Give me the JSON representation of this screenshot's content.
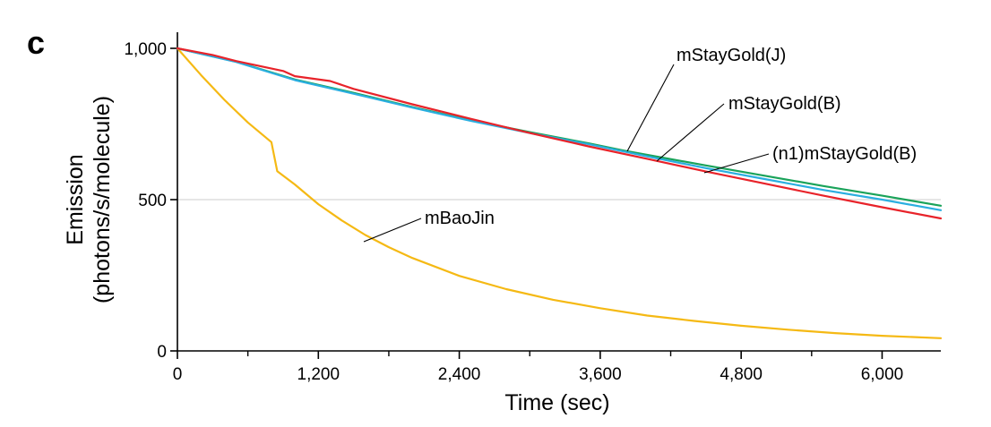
{
  "panel_label": "c",
  "chart_data": {
    "type": "line",
    "title": "",
    "xlabel": "Time (sec)",
    "ylabel_lines": [
      "Emission",
      "(photons/s/molecule)"
    ],
    "xlim": [
      0,
      6500
    ],
    "ylim": [
      0,
      1000
    ],
    "xticks": [
      0,
      1200,
      2400,
      3600,
      4800,
      6000
    ],
    "xtick_labels": [
      "0",
      "1,200",
      "2,400",
      "3,600",
      "4,800",
      "6,000"
    ],
    "x_minor_ticks": [
      600,
      1800,
      3000,
      4200,
      5400
    ],
    "yticks": [
      0,
      500,
      1000
    ],
    "ytick_labels": [
      "0",
      "500",
      "1,000"
    ],
    "gridlines_y": [
      500
    ],
    "legend": "none (direct labels with leader lines)",
    "series": [
      {
        "name": "mStayGold(J)",
        "color": "#1aa35a",
        "points": [
          [
            0,
            1000
          ],
          [
            500,
            956
          ],
          [
            1000,
            897
          ],
          [
            1500,
            853
          ],
          [
            2000,
            806
          ],
          [
            2500,
            762
          ],
          [
            3000,
            723
          ],
          [
            3500,
            686
          ],
          [
            3800,
            662
          ],
          [
            4000,
            648
          ],
          [
            4500,
            613
          ],
          [
            5000,
            579
          ],
          [
            5500,
            545
          ],
          [
            6000,
            513
          ],
          [
            6500,
            480
          ]
        ]
      },
      {
        "name": "mStayGold(B)",
        "color": "#2aaee0",
        "points": [
          [
            0,
            1000
          ],
          [
            500,
            955
          ],
          [
            1000,
            895
          ],
          [
            1500,
            850
          ],
          [
            2000,
            804
          ],
          [
            2500,
            760
          ],
          [
            3000,
            720
          ],
          [
            3500,
            683
          ],
          [
            4000,
            643
          ],
          [
            4500,
            604
          ],
          [
            5000,
            568
          ],
          [
            5500,
            532
          ],
          [
            6000,
            500
          ],
          [
            6500,
            465
          ]
        ]
      },
      {
        "name": "(n1)mStayGold(B)",
        "color": "#e8232a",
        "points": [
          [
            0,
            1000
          ],
          [
            300,
            978
          ],
          [
            500,
            958
          ],
          [
            900,
            925
          ],
          [
            1000,
            908
          ],
          [
            1300,
            892
          ],
          [
            1500,
            866
          ],
          [
            2000,
            815
          ],
          [
            2500,
            767
          ],
          [
            3000,
            720
          ],
          [
            3500,
            676
          ],
          [
            4000,
            635
          ],
          [
            4500,
            593
          ],
          [
            5000,
            553
          ],
          [
            5500,
            513
          ],
          [
            6000,
            475
          ],
          [
            6500,
            438
          ]
        ]
      },
      {
        "name": "mBaoJin",
        "color": "#f5b914",
        "points": [
          [
            0,
            1000
          ],
          [
            200,
            912
          ],
          [
            400,
            830
          ],
          [
            600,
            755
          ],
          [
            800,
            690
          ],
          [
            850,
            594
          ],
          [
            1000,
            550
          ],
          [
            1200,
            485
          ],
          [
            1400,
            431
          ],
          [
            1600,
            383
          ],
          [
            1800,
            343
          ],
          [
            2000,
            307
          ],
          [
            2400,
            248
          ],
          [
            2800,
            204
          ],
          [
            3200,
            169
          ],
          [
            3600,
            141
          ],
          [
            4000,
            117
          ],
          [
            4400,
            99
          ],
          [
            4800,
            83
          ],
          [
            5200,
            70
          ],
          [
            5600,
            59
          ],
          [
            6000,
            50
          ],
          [
            6500,
            42
          ]
        ]
      }
    ],
    "annotations": [
      {
        "text": "mStayGold(J)",
        "series": "mStayGold(J)"
      },
      {
        "text": "mStayGold(B)",
        "series": "mStayGold(B)"
      },
      {
        "text": "(n1)mStayGold(B)",
        "series": "(n1)mStayGold(B)"
      },
      {
        "text": "mBaoJin",
        "series": "mBaoJin"
      }
    ]
  }
}
